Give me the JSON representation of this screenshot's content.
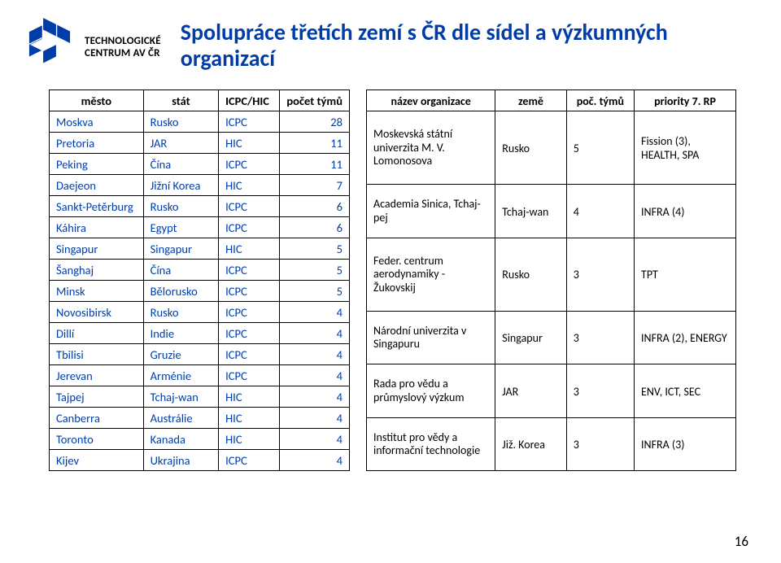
{
  "logo": {
    "line1": "TECHNOLOGICKÉ",
    "line2": "CENTRUM AV ČR",
    "color": "#003da7"
  },
  "title": "Spolupráce třetích zemí s ČR dle sídel a výzkumných organizací",
  "leftTable": {
    "headers": [
      "město",
      "stát",
      "ICPC/HIC",
      "počet týmů"
    ],
    "rows": [
      [
        "Moskva",
        "Rusko",
        "ICPC",
        "28"
      ],
      [
        "Pretoria",
        "JAR",
        "HIC",
        "11"
      ],
      [
        "Peking",
        "Čína",
        "ICPC",
        "11"
      ],
      [
        "Daejeon",
        "Jižní Korea",
        "HIC",
        "7"
      ],
      [
        "Sankt-Petěrburg",
        "Rusko",
        "ICPC",
        "6"
      ],
      [
        "Káhira",
        "Egypt",
        "ICPC",
        "6"
      ],
      [
        "Singapur",
        "Singapur",
        "HIC",
        "5"
      ],
      [
        "Šanghaj",
        "Čína",
        "ICPC",
        "5"
      ],
      [
        "Minsk",
        "Bělorusko",
        "ICPC",
        "5"
      ],
      [
        "Novosibirsk",
        "Rusko",
        "ICPC",
        "4"
      ],
      [
        "Dillí",
        "Indie",
        "ICPC",
        "4"
      ],
      [
        "Tbilisi",
        "Gruzie",
        "ICPC",
        "4"
      ],
      [
        "Jerevan",
        "Arménie",
        "ICPC",
        "4"
      ],
      [
        "Tajpej",
        "Tchaj-wan",
        "HIC",
        "4"
      ],
      [
        "Canberra",
        "Austrálie",
        "HIC",
        "4"
      ],
      [
        "Toronto",
        "Kanada",
        "HIC",
        "4"
      ],
      [
        "Kijev",
        "Ukrajina",
        "ICPC",
        "4"
      ]
    ]
  },
  "rightTable": {
    "headers": [
      "název organizace",
      "země",
      "poč. týmů",
      "priority 7. RP"
    ],
    "rows": [
      {
        "org": "Moskevská státní univerzita M. V. Lomonosova",
        "country": "Rusko",
        "teams": "5",
        "prio": "Fission (3), HEALTH, SPA"
      },
      {
        "org": "Academia Sinica, Tchaj-pej",
        "country": "Tchaj-wan",
        "teams": "4",
        "prio": "INFRA (4)"
      },
      {
        "org": "Feder. centrum aerodynamiky - Žukovskij",
        "country": "Rusko",
        "teams": "3",
        "prio": "TPT"
      },
      {
        "org": "Národní univerzita v Singapuru",
        "country": "Singapur",
        "teams": "3",
        "prio": "INFRA (2), ENERGY"
      },
      {
        "org": "Rada pro vědu a průmyslový výzkum",
        "country": "JAR",
        "teams": "3",
        "prio": "ENV, ICT, SEC"
      },
      {
        "org": "Institut pro vědy a informační technologie",
        "country": "Již. Korea",
        "teams": "3",
        "prio": "INFRA (3)"
      }
    ]
  },
  "pageNumber": "16"
}
